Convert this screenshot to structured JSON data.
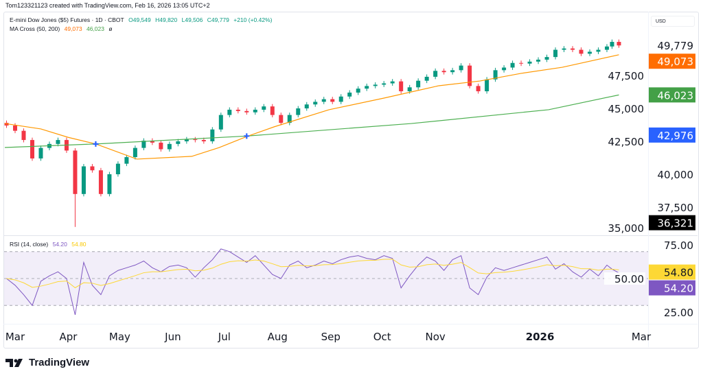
{
  "credit": "Tom123321123 created with TradingView.com, Feb 16, 2026 13:05 UTC+2",
  "legend": {
    "symbol": "E-mini Dow Jones ($5) Futures · 1D · CBOT",
    "o": "O49,549",
    "h": "H49,820",
    "l": "L49,506",
    "c": "C49,779",
    "chg": "+210 (+0.42%)",
    "ma_name": "MA Cross (50, 200)",
    "ma_fast": "49,073",
    "ma_slow": "46,023",
    "ma_icon": "ø",
    "rsi_name": "RSI (14, close)",
    "rsi_val": "54.20",
    "rsi_ma": "54.80"
  },
  "currency": "USD",
  "logo": "TradingView",
  "colors": {
    "up": "#089981",
    "down": "#f23645",
    "ma_fast": "#ff9800",
    "ma_slow": "#4caf50",
    "rsi": "#7e57c2",
    "rsi_ma": "#fdd835",
    "cross": "#2962ff"
  },
  "chart_data": [
    {
      "type": "candlestick",
      "title": "E-mini Dow Jones ($5) Futures · 1D · CBOT",
      "ylim": [
        34800,
        51000
      ],
      "y_ticks": [
        "47,500",
        "45,000",
        "42,500",
        "40,000",
        "37,500",
        "35,000"
      ],
      "y_tick_values": [
        47500,
        45000,
        42500,
        40000,
        37500,
        35000
      ],
      "x_ticks": [
        "Mar",
        "Apr",
        "May",
        "Jun",
        "Jul",
        "Aug",
        "Sep",
        "Oct",
        "Nov",
        "2026",
        "Mar"
      ],
      "x_tick_dates": [
        "2025-03-01",
        "2025-04-01",
        "2025-05-01",
        "2025-06-01",
        "2025-07-01",
        "2025-08-01",
        "2025-09-01",
        "2025-10-01",
        "2025-11-01",
        "2026-01-01",
        "2026-03-01"
      ],
      "dates": [
        "2025-02-24",
        "2025-03-01",
        "2025-03-06",
        "2025-03-11",
        "2025-03-16",
        "2025-03-21",
        "2025-03-26",
        "2025-03-31",
        "2025-04-05",
        "2025-04-10",
        "2025-04-15",
        "2025-04-20",
        "2025-04-25",
        "2025-04-30",
        "2025-05-05",
        "2025-05-10",
        "2025-05-15",
        "2025-05-20",
        "2025-05-25",
        "2025-05-30",
        "2025-06-04",
        "2025-06-09",
        "2025-06-14",
        "2025-06-19",
        "2025-06-24",
        "2025-06-29",
        "2025-07-04",
        "2025-07-09",
        "2025-07-14",
        "2025-07-19",
        "2025-07-24",
        "2025-07-29",
        "2025-08-03",
        "2025-08-08",
        "2025-08-13",
        "2025-08-18",
        "2025-08-23",
        "2025-08-28",
        "2025-09-02",
        "2025-09-07",
        "2025-09-12",
        "2025-09-17",
        "2025-09-22",
        "2025-09-27",
        "2025-10-02",
        "2025-10-07",
        "2025-10-12",
        "2025-10-17",
        "2025-10-22",
        "2025-10-27",
        "2025-11-01",
        "2025-11-06",
        "2025-11-11",
        "2025-11-16",
        "2025-11-21",
        "2025-11-26",
        "2025-12-01",
        "2025-12-06",
        "2025-12-11",
        "2025-12-16",
        "2025-12-21",
        "2025-12-26",
        "2025-12-31",
        "2026-01-05",
        "2026-01-10",
        "2026-01-15",
        "2026-01-20",
        "2026-01-25",
        "2026-01-30",
        "2026-02-04",
        "2026-02-09",
        "2026-02-12",
        "2026-02-16"
      ],
      "close": [
        43700,
        43300,
        42600,
        41200,
        42000,
        42300,
        42600,
        41800,
        38500,
        40600,
        40300,
        38500,
        40000,
        40800,
        41300,
        42000,
        42550,
        42400,
        41900,
        42300,
        42500,
        42650,
        42600,
        42500,
        43400,
        44500,
        44900,
        44800,
        44700,
        44900,
        45150,
        44500,
        43900,
        44500,
        45000,
        45300,
        45500,
        45700,
        45500,
        45900,
        46200,
        46500,
        46700,
        46800,
        46900,
        47050,
        46300,
        46600,
        47100,
        47400,
        47850,
        47750,
        47900,
        48250,
        46700,
        46300,
        47200,
        47900,
        48100,
        48450,
        48400,
        48550,
        48700,
        48900,
        49450,
        49550,
        49450,
        49150,
        49300,
        49450,
        49700,
        50050,
        49779
      ],
      "low_min": {
        "date": "2025-04-07",
        "value": 36000
      },
      "ma_fast": {
        "name": "MA 50",
        "dates": [
          "2025-02-23",
          "2025-03-16",
          "2025-04-01",
          "2025-04-17",
          "2025-05-11",
          "2025-06-12",
          "2025-06-28",
          "2025-07-14",
          "2025-07-30",
          "2025-08-31",
          "2025-10-02",
          "2025-11-03",
          "2025-11-27",
          "2025-12-21",
          "2026-01-14",
          "2026-02-16"
        ],
        "values": [
          43850,
          43440,
          42800,
          42300,
          41150,
          41360,
          42030,
          42860,
          43600,
          44900,
          45780,
          46720,
          47080,
          47660,
          48120,
          49073
        ]
      },
      "ma_slow": {
        "name": "MA 200",
        "dates": [
          "2025-02-23",
          "2025-04-17",
          "2025-07-14",
          "2025-10-18",
          "2026-01-06",
          "2026-02-16"
        ],
        "values": [
          42030,
          42300,
          42900,
          43850,
          44900,
          46023
        ]
      },
      "crosses": [
        {
          "date": "2025-04-17",
          "value": 42300
        },
        {
          "date": "2025-07-14",
          "value": 42900
        }
      ],
      "price_labels": [
        {
          "text": "49,779",
          "value": 49779,
          "bg": "none"
        },
        {
          "text": "49,073",
          "value": 49073,
          "bg": "#ff6d00"
        },
        {
          "text": "46,023",
          "value": 46023,
          "bg": "#43a047"
        },
        {
          "text": "42,976",
          "value": 42976,
          "bg": "#2962ff"
        },
        {
          "text": "36,321",
          "value": 36321,
          "bg": "#000000"
        }
      ]
    },
    {
      "type": "line",
      "title": "RSI (14, close)",
      "ylim": [
        20,
        80
      ],
      "y_ticks": [
        "75.00",
        "50.00",
        "25.00"
      ],
      "y_tick_values": [
        75,
        50,
        25
      ],
      "band": [
        30,
        70
      ],
      "values": [
        50,
        45,
        38,
        30,
        48,
        52,
        55,
        50,
        23,
        62,
        45,
        38,
        52,
        56,
        58,
        60,
        63,
        58,
        55,
        59,
        60,
        58,
        51,
        58,
        64,
        72,
        70,
        66,
        62,
        67,
        60,
        53,
        50,
        60,
        63,
        58,
        60,
        63,
        61,
        64,
        66,
        67,
        65,
        64,
        67,
        65,
        43,
        52,
        60,
        66,
        63,
        56,
        64,
        67,
        43,
        38,
        51,
        58,
        56,
        58,
        60,
        62,
        64,
        66,
        57,
        61,
        55,
        51,
        57,
        52,
        60,
        57,
        54.2
      ],
      "price_labels": [
        {
          "text": "54.80",
          "value": 54.8,
          "bg": "#fdd835",
          "fg": "#131722"
        },
        {
          "text": "54.20",
          "value": 54.2,
          "bg": "#7e57c2",
          "fg": "#ffffff"
        }
      ]
    }
  ]
}
